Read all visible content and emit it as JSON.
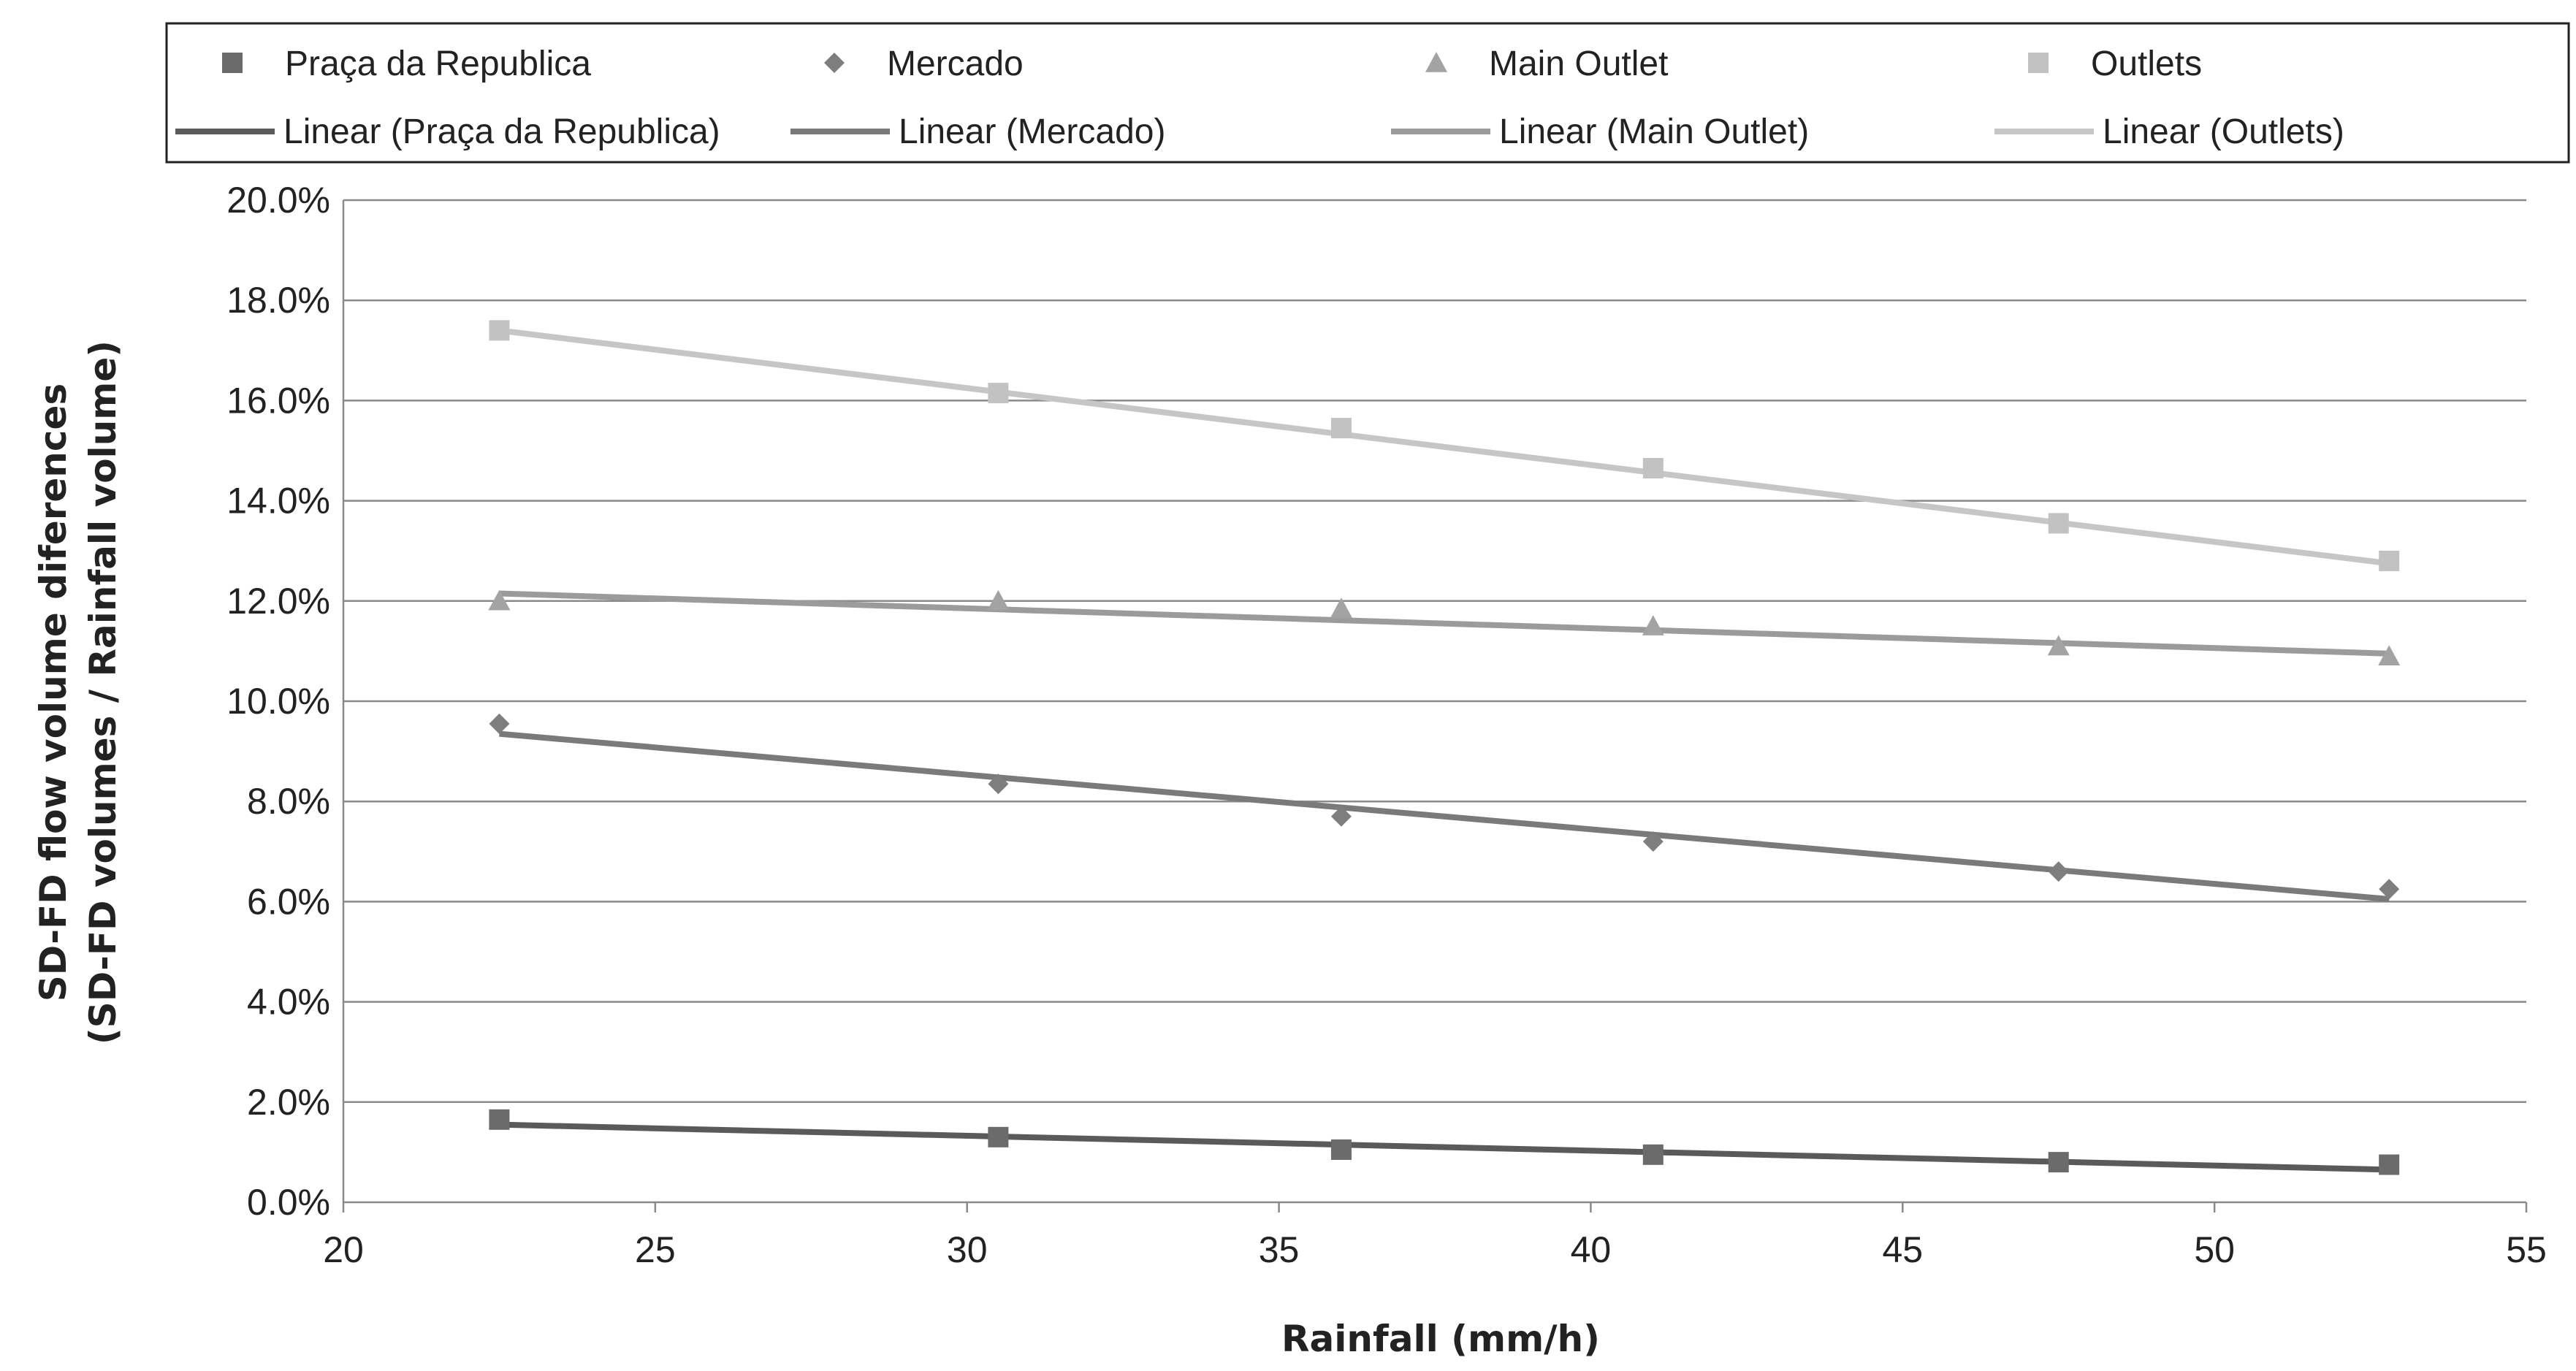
{
  "chart_data": {
    "type": "scatter",
    "title": "",
    "xlabel": "Rainfall (mm/h)",
    "ylabel_lines": [
      "SD-FD flow volume diferences",
      "(SD-FD volumes / Rainfall volume)"
    ],
    "xlim": [
      20,
      55
    ],
    "ylim": [
      0,
      0.2
    ],
    "grid": true,
    "legend_position": "top",
    "x_ticks": [
      20,
      25,
      30,
      35,
      40,
      45,
      50,
      55
    ],
    "x_tick_labels": [
      "20",
      "25",
      "30",
      "35",
      "40",
      "45",
      "50",
      "55"
    ],
    "y_ticks": [
      0,
      0.02,
      0.04,
      0.06,
      0.08,
      0.1,
      0.12,
      0.14,
      0.16,
      0.18,
      0.2
    ],
    "y_tick_labels": [
      "0.0%",
      "2.0%",
      "4.0%",
      "6.0%",
      "8.0%",
      "10.0%",
      "12.0%",
      "14.0%",
      "16.0%",
      "18.0%",
      "20.0%"
    ],
    "x": [
      22.5,
      30.5,
      36.0,
      41.0,
      47.5,
      52.8
    ],
    "series": [
      {
        "name": "Praça da Republica",
        "marker": "square",
        "color": "#6b6b6b",
        "values": [
          0.0165,
          0.013,
          0.0105,
          0.0095,
          0.008,
          0.0075
        ],
        "trend_name": "Linear (Praça da Republica)",
        "trend_color": "#5a5a5a",
        "trend": [
          0.0155,
          0.0065
        ]
      },
      {
        "name": "Mercado",
        "marker": "diamond",
        "color": "#7e7e7e",
        "values": [
          0.0955,
          0.0835,
          0.077,
          0.072,
          0.066,
          0.0625
        ],
        "trend_name": "Linear (Mercado)",
        "trend_color": "#7a7a7a",
        "trend": [
          0.0935,
          0.0605
        ]
      },
      {
        "name": "Main Outlet",
        "marker": "triangle",
        "color": "#a3a3a3",
        "values": [
          0.12,
          0.12,
          0.1185,
          0.115,
          0.111,
          0.109
        ],
        "trend_name": "Linear (Main Outlet)",
        "trend_color": "#9b9b9b",
        "trend": [
          0.1215,
          0.1095
        ]
      },
      {
        "name": "Outlets",
        "marker": "square",
        "color": "#c2c2c2",
        "values": [
          0.174,
          0.1615,
          0.1545,
          0.1465,
          0.1355,
          0.128
        ],
        "trend_name": "Linear (Outlets)",
        "trend_color": "#c6c6c6",
        "trend": [
          0.174,
          0.1275
        ]
      }
    ]
  }
}
